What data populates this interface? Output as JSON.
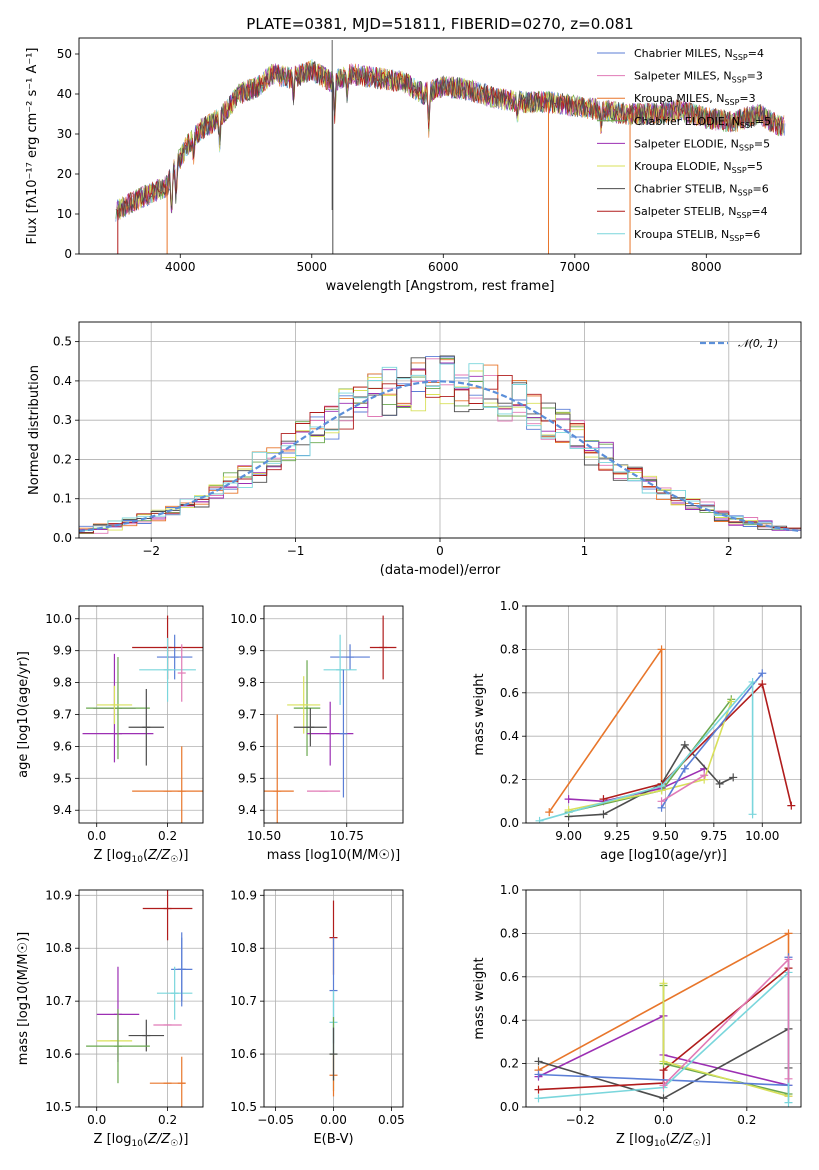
{
  "figure": {
    "title": "PLATE=0381, MJD=51811, FIBERID=0270, z=0.081"
  },
  "chart_data": [
    {
      "id": "spectrum",
      "type": "line",
      "xlabel": "wavelength [Angstrom, rest frame]",
      "ylabel": "Flux [f$_\\lambda$10$^{-17}$ erg cm$^{-2}$ s$^{-1}$ A$^{-1}$]",
      "ylabel_display": "Flux [fλ10⁻¹⁷ erg cm⁻² s⁻¹ A⁻¹]",
      "xlim": [
        3230,
        8720
      ],
      "ylim": [
        0,
        54
      ],
      "xticks": [
        4000,
        5000,
        6000,
        7000,
        8000
      ],
      "yticks": [
        0,
        10,
        20,
        30,
        40,
        50
      ],
      "grid": false,
      "legend_position": "top-right",
      "continuum_x": [
        3520,
        3700,
        3900,
        3950,
        4050,
        4150,
        4300,
        4450,
        4600,
        4700,
        4850,
        5000,
        5150,
        5300,
        5500,
        5700,
        5850,
        6000,
        6200,
        6400,
        6600,
        6800,
        7000,
        7200,
        7400,
        7600,
        7800,
        8000,
        8200,
        8400,
        8550
      ],
      "continuum_y": [
        11,
        14,
        17,
        21,
        27,
        31,
        34,
        40,
        42,
        45,
        44,
        46,
        43,
        45,
        44,
        43,
        40,
        42,
        41,
        39,
        38,
        38,
        37,
        36,
        35,
        35,
        36,
        34,
        33,
        35,
        32
      ],
      "series": [
        {
          "name": "Chabrier MILES, N_SSP=4",
          "label_main": "Chabrier MILES, N",
          "label_sub": "SSP",
          "label_tail": "=4",
          "color": "#5b7ed6"
        },
        {
          "name": "Salpeter MILES, N_SSP=3",
          "label_main": "Salpeter MILES, N",
          "label_sub": "SSP",
          "label_tail": "=3",
          "color": "#e07ab6"
        },
        {
          "name": "Kroupa MILES, N_SSP=3",
          "label_main": "Kroupa MILES, N",
          "label_sub": "SSP",
          "label_tail": "=3",
          "color": "#e8762b"
        },
        {
          "name": "Chabrier ELODIE, N_SSP=5",
          "label_main": "Chabrier ELODIE, N",
          "label_sub": "SSP",
          "label_tail": "=5",
          "color": "#6aa84f"
        },
        {
          "name": "Salpeter ELODIE, N_SSP=5",
          "label_main": "Salpeter ELODIE, N",
          "label_sub": "SSP",
          "label_tail": "=5",
          "color": "#9c2fb3"
        },
        {
          "name": "Kroupa ELODIE, N_SSP=5",
          "label_main": "Kroupa ELODIE, N",
          "label_sub": "SSP",
          "label_tail": "=5",
          "color": "#d8e05a"
        },
        {
          "name": "Chabrier STELIB, N_SSP=6",
          "label_main": "Chabrier STELIB, N",
          "label_sub": "SSP",
          "label_tail": "=6",
          "color": "#4d4d4d"
        },
        {
          "name": "Salpeter STELIB, N_SSP=4",
          "label_main": "Salpeter STELIB, N",
          "label_sub": "SSP",
          "label_tail": "=4",
          "color": "#b01c1c"
        },
        {
          "name": "Kroupa STELIB, N_SSP=6",
          "label_main": "Kroupa STELIB, N",
          "label_sub": "SSP",
          "label_tail": "=6",
          "color": "#7ad6dc"
        }
      ]
    },
    {
      "id": "residuals",
      "type": "line",
      "xlabel": "(data-model)/error",
      "ylabel": "Normed distribution",
      "xlim": [
        -2.5,
        2.5
      ],
      "ylim": [
        0,
        0.55
      ],
      "xticks": [
        -2,
        -1,
        0,
        1,
        2
      ],
      "xtick_labels": [
        "−2",
        "−1",
        "0",
        "1",
        "2"
      ],
      "yticks": [
        0.0,
        0.1,
        0.2,
        0.3,
        0.4,
        0.5
      ],
      "ytick_labels": [
        "0.0",
        "0.1",
        "0.2",
        "0.3",
        "0.4",
        "0.5"
      ],
      "grid": true,
      "legend_position": "top-right",
      "reference_curve": {
        "name": "𝒩(0, 1)",
        "color": "#5b8fd9"
      },
      "bin_width": 0.1
    },
    {
      "id": "age_vs_Z",
      "type": "scatter",
      "xlabel": "Z [log10(Z/Z☉)]",
      "ylabel": "age [log10(age/yr)]",
      "xlim": [
        -0.05,
        0.3
      ],
      "ylim": [
        9.36,
        10.04
      ],
      "xticks": [
        0.0,
        0.2
      ],
      "xtick_labels": [
        "0.0",
        "0.2"
      ],
      "yticks": [
        9.4,
        9.5,
        9.6,
        9.7,
        9.8,
        9.9,
        10.0
      ],
      "ytick_labels": [
        "9.4",
        "9.5",
        "9.6",
        "9.7",
        "9.8",
        "9.9",
        "10.0"
      ],
      "grid": true,
      "points": [
        {
          "x": 0.22,
          "y": 9.88,
          "xerr": 0.05,
          "yerr": 0.07,
          "color": "#5b7ed6"
        },
        {
          "x": 0.2,
          "y": 9.46,
          "xerr": 0.1,
          "yerr": 0.0,
          "color": "#e8762b"
        },
        {
          "x": 0.24,
          "y": 9.46,
          "xerr": 0.0,
          "yerr": 0.14,
          "color": "#e8762b"
        },
        {
          "x": 0.05,
          "y": 9.72,
          "xerr": 0.06,
          "yerr": 0.17,
          "color": "#9c2fb3"
        },
        {
          "x": 0.06,
          "y": 9.64,
          "xerr": 0.1,
          "yerr": 0.0,
          "color": "#9c2fb3"
        },
        {
          "x": 0.06,
          "y": 9.72,
          "xerr": 0.09,
          "yerr": 0.16,
          "color": "#6aa84f"
        },
        {
          "x": 0.05,
          "y": 9.73,
          "xerr": 0.05,
          "yerr": 0.06,
          "color": "#d8e05a"
        },
        {
          "x": 0.14,
          "y": 9.66,
          "xerr": 0.05,
          "yerr": 0.12,
          "color": "#4d4d4d"
        },
        {
          "x": 0.2,
          "y": 9.91,
          "xerr": 0.1,
          "yerr": 0.1,
          "color": "#b01c1c"
        },
        {
          "x": 0.2,
          "y": 9.84,
          "xerr": 0.08,
          "yerr": 0.1,
          "color": "#7ad6dc"
        },
        {
          "x": 0.24,
          "y": 9.83,
          "xerr": 0.0,
          "yerr": 0.09,
          "color": "#e07ab6"
        }
      ]
    },
    {
      "id": "age_vs_mass",
      "type": "scatter",
      "xlabel": "mass [log10(M/M☉)]",
      "xlim": [
        10.5,
        10.92
      ],
      "ylim": [
        9.36,
        10.04
      ],
      "xticks": [
        10.5,
        10.75
      ],
      "xtick_labels": [
        "10.50",
        "10.75"
      ],
      "yticks": [
        9.4,
        9.5,
        9.6,
        9.7,
        9.8,
        9.9,
        10.0
      ],
      "ytick_labels": [
        "9.4",
        "9.5",
        "9.6",
        "9.7",
        "9.8",
        "9.9",
        "10.0"
      ],
      "grid": true,
      "points": [
        {
          "x": 10.76,
          "y": 9.88,
          "xerr": 0.06,
          "yerr": 0.04,
          "color": "#5b7ed6"
        },
        {
          "x": 10.54,
          "y": 9.46,
          "xerr": 0.05,
          "yerr": 0.24,
          "color": "#e8762b"
        },
        {
          "x": 10.68,
          "y": 9.46,
          "xerr": 0.05,
          "yerr": 0.0,
          "color": "#e07ab6"
        },
        {
          "x": 10.63,
          "y": 9.72,
          "xerr": 0.04,
          "yerr": 0.15,
          "color": "#6aa84f"
        },
        {
          "x": 10.62,
          "y": 9.73,
          "xerr": 0.05,
          "yerr": 0.09,
          "color": "#d8e05a"
        },
        {
          "x": 10.7,
          "y": 9.64,
          "xerr": 0.07,
          "yerr": 0.1,
          "color": "#9c2fb3"
        },
        {
          "x": 10.64,
          "y": 9.66,
          "xerr": 0.05,
          "yerr": 0.06,
          "color": "#4d4d4d"
        },
        {
          "x": 10.86,
          "y": 9.91,
          "xerr": 0.04,
          "yerr": 0.1,
          "color": "#b01c1c"
        },
        {
          "x": 10.73,
          "y": 9.84,
          "xerr": 0.05,
          "yerr": 0.11,
          "color": "#7ad6dc"
        },
        {
          "x": 10.74,
          "y": 9.64,
          "xerr": 0.0,
          "yerr": 0.2,
          "color": "#5b7ed6"
        }
      ]
    },
    {
      "id": "massweight_vs_age",
      "type": "line",
      "xlabel": "age  [log10(age/yr)]",
      "ylabel": "mass weight",
      "xlim": [
        8.78,
        10.2
      ],
      "ylim": [
        0,
        1.0
      ],
      "xticks": [
        9.0,
        9.25,
        9.5,
        9.75,
        10.0
      ],
      "xtick_labels": [
        "9.00",
        "9.25",
        "9.50",
        "9.75",
        "10.00"
      ],
      "yticks": [
        0.0,
        0.2,
        0.4,
        0.6,
        0.8,
        1.0
      ],
      "ytick_labels": [
        "0.0",
        "0.2",
        "0.4",
        "0.6",
        "0.8",
        "1.0"
      ],
      "grid": true,
      "series": [
        {
          "color": "#e8762b",
          "x": [
            8.9,
            9.48,
            9.48
          ],
          "y": [
            0.05,
            0.8,
            0.18
          ]
        },
        {
          "color": "#9c2fb3",
          "x": [
            9.0,
            9.18,
            9.48,
            9.7
          ],
          "y": [
            0.11,
            0.1,
            0.16,
            0.25
          ]
        },
        {
          "color": "#4d4d4d",
          "x": [
            9.0,
            9.18,
            9.48,
            9.6,
            9.78,
            9.85
          ],
          "y": [
            0.03,
            0.04,
            0.18,
            0.36,
            0.18,
            0.21
          ]
        },
        {
          "color": "#b01c1c",
          "x": [
            9.18,
            9.48,
            10.0,
            10.15
          ],
          "y": [
            0.11,
            0.18,
            0.64,
            0.08
          ]
        },
        {
          "color": "#6aa84f",
          "x": [
            9.0,
            9.48,
            9.84
          ],
          "y": [
            0.05,
            0.15,
            0.57
          ]
        },
        {
          "color": "#d8e05a",
          "x": [
            9.0,
            9.48,
            9.7,
            9.84
          ],
          "y": [
            0.06,
            0.15,
            0.2,
            0.56
          ]
        },
        {
          "color": "#5b7ed6",
          "x": [
            9.48,
            9.6,
            10.0
          ],
          "y": [
            0.07,
            0.25,
            0.69
          ]
        },
        {
          "color": "#7ad6dc",
          "x": [
            8.85,
            9.48,
            9.95,
            9.95
          ],
          "y": [
            0.01,
            0.17,
            0.65,
            0.04
          ]
        },
        {
          "color": "#e07ab6",
          "x": [
            9.48,
            9.7
          ],
          "y": [
            0.1,
            0.22
          ]
        }
      ]
    },
    {
      "id": "mass_vs_Z",
      "type": "scatter",
      "xlabel": "Z [log10(Z/Z☉)]",
      "ylabel": "mass [log10(M/M☉)]",
      "xlim": [
        -0.05,
        0.3
      ],
      "ylim": [
        10.5,
        10.91
      ],
      "xticks": [
        0.0,
        0.2
      ],
      "xtick_labels": [
        "0.0",
        "0.2"
      ],
      "yticks": [
        10.5,
        10.6,
        10.7,
        10.8,
        10.9
      ],
      "ytick_labels": [
        "10.5",
        "10.6",
        "10.7",
        "10.8",
        "10.9"
      ],
      "grid": true,
      "points": [
        {
          "x": 0.2,
          "y": 10.875,
          "xerr": 0.07,
          "yerr": 0.06,
          "color": "#b01c1c"
        },
        {
          "x": 0.24,
          "y": 10.76,
          "xerr": 0.03,
          "yerr": 0.07,
          "color": "#5b7ed6"
        },
        {
          "x": 0.22,
          "y": 10.715,
          "xerr": 0.05,
          "yerr": 0.05,
          "color": "#7ad6dc"
        },
        {
          "x": 0.2,
          "y": 10.655,
          "xerr": 0.04,
          "yerr": 0.0,
          "color": "#e07ab6"
        },
        {
          "x": 0.24,
          "y": 10.545,
          "xerr": 0.0,
          "yerr": 0.05,
          "color": "#e8762b"
        },
        {
          "x": 0.2,
          "y": 10.545,
          "xerr": 0.05,
          "yerr": 0.0,
          "color": "#e8762b"
        },
        {
          "x": 0.06,
          "y": 10.675,
          "xerr": 0.06,
          "yerr": 0.09,
          "color": "#9c2fb3"
        },
        {
          "x": 0.14,
          "y": 10.635,
          "xerr": 0.05,
          "yerr": 0.03,
          "color": "#4d4d4d"
        },
        {
          "x": 0.05,
          "y": 10.625,
          "xerr": 0.05,
          "yerr": 0.0,
          "color": "#d8e05a"
        },
        {
          "x": 0.06,
          "y": 10.615,
          "xerr": 0.09,
          "yerr": 0.07,
          "color": "#6aa84f"
        },
        {
          "x": 0.24,
          "y": 10.76,
          "xerr": 0.0,
          "yerr": 0.06,
          "color": "#5b7ed6"
        }
      ]
    },
    {
      "id": "mass_vs_EBV",
      "type": "scatter",
      "xlabel": "E(B-V)",
      "xlim": [
        -0.06,
        0.06
      ],
      "ylim": [
        10.5,
        10.91
      ],
      "xticks": [
        -0.05,
        0.0,
        0.05
      ],
      "xtick_labels": [
        "−0.05",
        "0.00",
        "0.05"
      ],
      "yticks": [
        10.5,
        10.6,
        10.7,
        10.8,
        10.9
      ],
      "ytick_labels": [
        "10.5",
        "10.6",
        "10.7",
        "10.8",
        "10.9"
      ],
      "grid": true,
      "points": [
        {
          "x": 0.0,
          "y": 10.82,
          "yerr": 0.07,
          "color": "#b01c1c"
        },
        {
          "x": 0.0,
          "y": 10.72,
          "yerr": 0.1,
          "color": "#5b7ed6"
        },
        {
          "x": 0.0,
          "y": 10.66,
          "yerr": 0.06,
          "color": "#7ad6dc"
        },
        {
          "x": 0.0,
          "y": 10.6,
          "yerr": 0.07,
          "color": "#6aa84f"
        },
        {
          "x": 0.0,
          "y": 10.56,
          "yerr": 0.04,
          "color": "#e8762b"
        },
        {
          "x": 0.0,
          "y": 10.6,
          "yerr": 0.05,
          "color": "#4d4d4d"
        }
      ]
    },
    {
      "id": "massweight_vs_Z",
      "type": "line",
      "xlabel": "Z [log10(Z/Z☉)]",
      "ylabel": "mass weight",
      "xlim": [
        -0.33,
        0.33
      ],
      "ylim": [
        0,
        1.0
      ],
      "xticks": [
        -0.2,
        0.0,
        0.2
      ],
      "xtick_labels": [
        "−0.2",
        "0.0",
        "0.2"
      ],
      "yticks": [
        0.0,
        0.2,
        0.4,
        0.6,
        0.8,
        1.0
      ],
      "ytick_labels": [
        "0.0",
        "0.2",
        "0.4",
        "0.6",
        "0.8",
        "1.0"
      ],
      "grid": true,
      "series": [
        {
          "color": "#e8762b",
          "x": [
            -0.3,
            0.3,
            0.3
          ],
          "y": [
            0.17,
            0.8,
            0.05
          ]
        },
        {
          "color": "#9c2fb3",
          "x": [
            -0.3,
            0.0,
            0.0,
            0.3
          ],
          "y": [
            0.14,
            0.42,
            0.24,
            0.1
          ]
        },
        {
          "color": "#4d4d4d",
          "x": [
            -0.3,
            0.0,
            0.3,
            0.3
          ],
          "y": [
            0.21,
            0.04,
            0.36,
            0.18
          ]
        },
        {
          "color": "#b01c1c",
          "x": [
            -0.3,
            0.0,
            0.0,
            0.3
          ],
          "y": [
            0.08,
            0.11,
            0.17,
            0.64
          ]
        },
        {
          "color": "#6aa84f",
          "x": [
            0.0,
            0.0,
            0.3
          ],
          "y": [
            0.56,
            0.2,
            0.06
          ]
        },
        {
          "color": "#d8e05a",
          "x": [
            0.0,
            0.0,
            0.3
          ],
          "y": [
            0.57,
            0.21,
            0.05
          ]
        },
        {
          "color": "#5b7ed6",
          "x": [
            -0.3,
            0.3,
            0.3
          ],
          "y": [
            0.15,
            0.1,
            0.69
          ]
        },
        {
          "color": "#7ad6dc",
          "x": [
            -0.3,
            0.0,
            0.3,
            0.3
          ],
          "y": [
            0.04,
            0.09,
            0.62,
            0.02
          ]
        },
        {
          "color": "#e07ab6",
          "x": [
            0.0,
            0.3,
            0.3
          ],
          "y": [
            0.1,
            0.68,
            0.13
          ]
        }
      ]
    }
  ]
}
